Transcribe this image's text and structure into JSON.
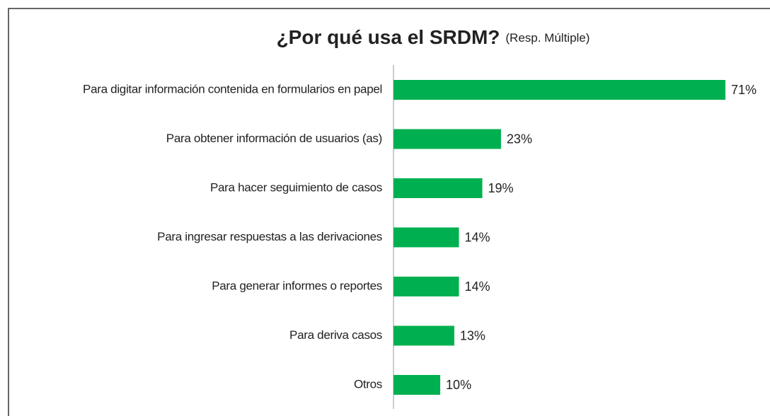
{
  "chart_data": {
    "type": "bar",
    "orientation": "horizontal",
    "title": "¿Por qué usa el SRDM?",
    "subtitle": "(Resp. Múltiple)",
    "categories": [
      "Para digitar información contenida en formularios en papel",
      "Para obtener información de usuarios (as)",
      "Para hacer seguimiento de casos",
      "Para ingresar respuestas a las derivaciones",
      "Para generar informes o reportes",
      "Para deriva casos",
      "Otros"
    ],
    "values": [
      71,
      23,
      19,
      14,
      14,
      13,
      10
    ],
    "value_labels": [
      "71%",
      "23%",
      "19%",
      "14%",
      "14%",
      "13%",
      "10%"
    ],
    "color": "#00b050"
  }
}
